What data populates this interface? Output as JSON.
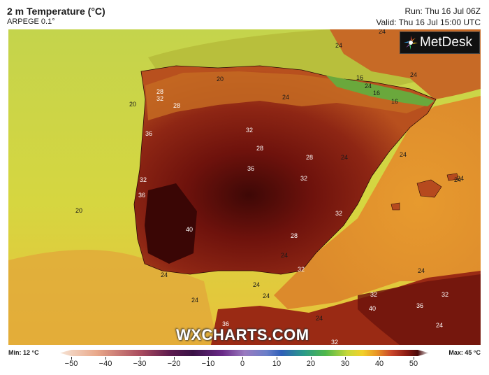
{
  "header": {
    "title": "2 m Temperature (°C)",
    "model": "ARPEGE 0.1°",
    "run": "Run: Thu 16 Jul 06Z",
    "valid": "Valid: Thu 16 Jul 15:00 UTC"
  },
  "logo": {
    "text": "MetDesk"
  },
  "watermark": "WXCHARTS.COM",
  "legend": {
    "min": "Min: 12 °C",
    "max": "Max: 45 °C",
    "ticks": [
      "−50",
      "−40",
      "−30",
      "−20",
      "−10",
      "0",
      "10",
      "20",
      "30",
      "40",
      "50"
    ]
  },
  "map_labels": {
    "l1": "24",
    "l2": "24",
    "l3": "24",
    "l4": "20",
    "l5": "16",
    "l6": "16",
    "l7": "24",
    "l8": "28",
    "l9": "28",
    "l10": "32",
    "l11": "20",
    "l12": "36",
    "l13": "32",
    "l14": "28",
    "l15": "36",
    "l16": "32",
    "l17": "28",
    "l18": "24",
    "l19": "32",
    "l20": "36",
    "l21": "20",
    "l22": "40",
    "l23": "32",
    "l24": "28",
    "l25": "24",
    "l26": "24",
    "l27": "24",
    "l28": "24",
    "l29": "36",
    "l30": "32",
    "l31": "40",
    "l32": "36",
    "l33": "32",
    "l34": "24",
    "l35": "32",
    "l36": "24",
    "l37": "24",
    "l38": "24",
    "l39": "32",
    "l40": "24",
    "l41": "24",
    "l42": "24",
    "l43": "24",
    "l44": "16"
  },
  "colors": {
    "sea_cool": "#c8d84a",
    "sea_warm": "#e8a93a",
    "land_hot": "#8a1a12",
    "land_hottest": "#4a0a0a"
  }
}
